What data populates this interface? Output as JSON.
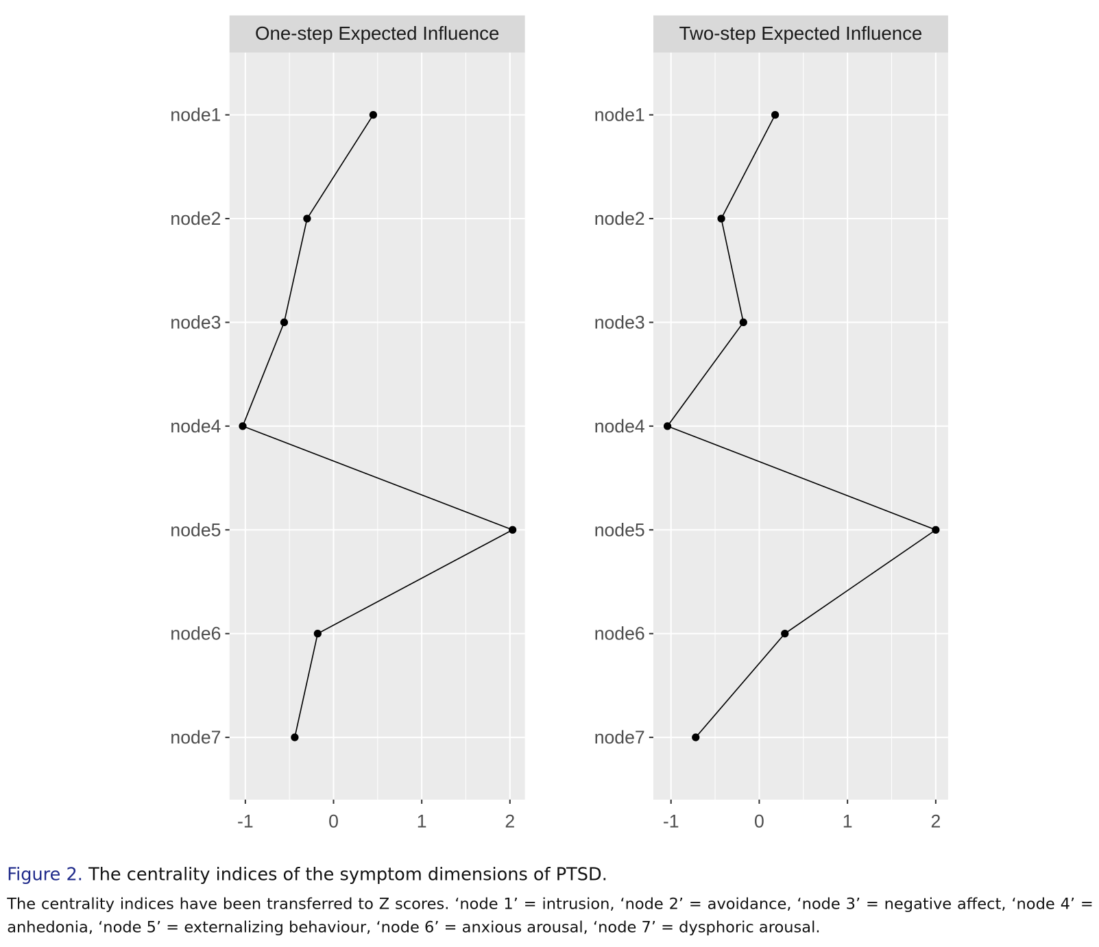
{
  "chart_data": [
    {
      "type": "line",
      "title": "One-step Expected Influence",
      "categories": [
        "node1",
        "node2",
        "node3",
        "node4",
        "node5",
        "node6",
        "node7"
      ],
      "values": [
        0.45,
        -0.3,
        -0.56,
        -1.03,
        2.03,
        -0.18,
        -0.44
      ],
      "color": "#000000",
      "xlim": [
        -1.18,
        2.17
      ],
      "xticks": [
        -1,
        0,
        1,
        2
      ],
      "grid": true
    },
    {
      "type": "line",
      "title": "Two-step Expected Influence",
      "categories": [
        "node1",
        "node2",
        "node3",
        "node4",
        "node5",
        "node6",
        "node7"
      ],
      "values": [
        0.18,
        -0.43,
        -0.18,
        -1.04,
        2.0,
        0.29,
        -0.72
      ],
      "color": "#000000",
      "xlim": [
        -1.2,
        2.14
      ],
      "xticks": [
        -1,
        0,
        1,
        2
      ],
      "grid": true
    }
  ],
  "caption": {
    "label": "Figure 2.",
    "title": "The centrality indices of the symptom dimensions of PTSD.",
    "note": "The centrality indices have been transferred to Z scores. ‘node 1’ = intrusion, ‘node 2’ = avoidance, ‘node 3’ = negative affect, ‘node 4’ = anhedonia, ‘node 5’ = externalizing behaviour, ‘node 6’ = anxious arousal, ‘node 7’ = dysphoric arousal."
  }
}
